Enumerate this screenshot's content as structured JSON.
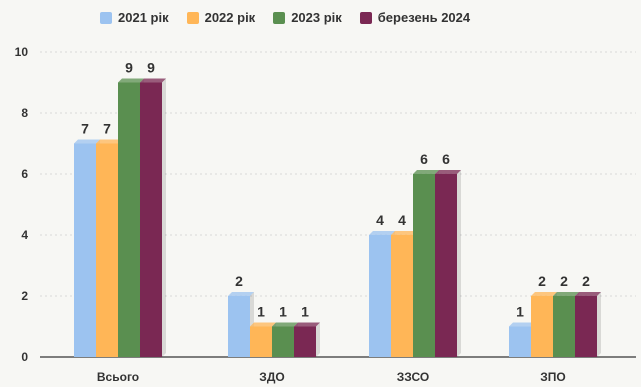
{
  "chart_data": {
    "type": "bar",
    "title": "",
    "xlabel": "",
    "ylabel": "",
    "categories": [
      "Всього",
      "ЗДО",
      "ЗЗСО",
      "ЗПО"
    ],
    "series": [
      {
        "name": "2021 рік",
        "values": [
          7,
          2,
          4,
          1
        ],
        "color": "#9cc3f0"
      },
      {
        "name": "2022 рік",
        "values": [
          7,
          1,
          4,
          2
        ],
        "color": "#ffb657"
      },
      {
        "name": "2023 рік",
        "values": [
          9,
          1,
          6,
          2
        ],
        "color": "#5a8f50"
      },
      {
        "name": "березень 2024",
        "values": [
          9,
          1,
          6,
          2
        ],
        "color": "#7a2853"
      }
    ],
    "ylim": [
      0,
      10
    ],
    "yticks": [
      0,
      2,
      4,
      6,
      8,
      10
    ],
    "grid": true,
    "legend": "top"
  }
}
